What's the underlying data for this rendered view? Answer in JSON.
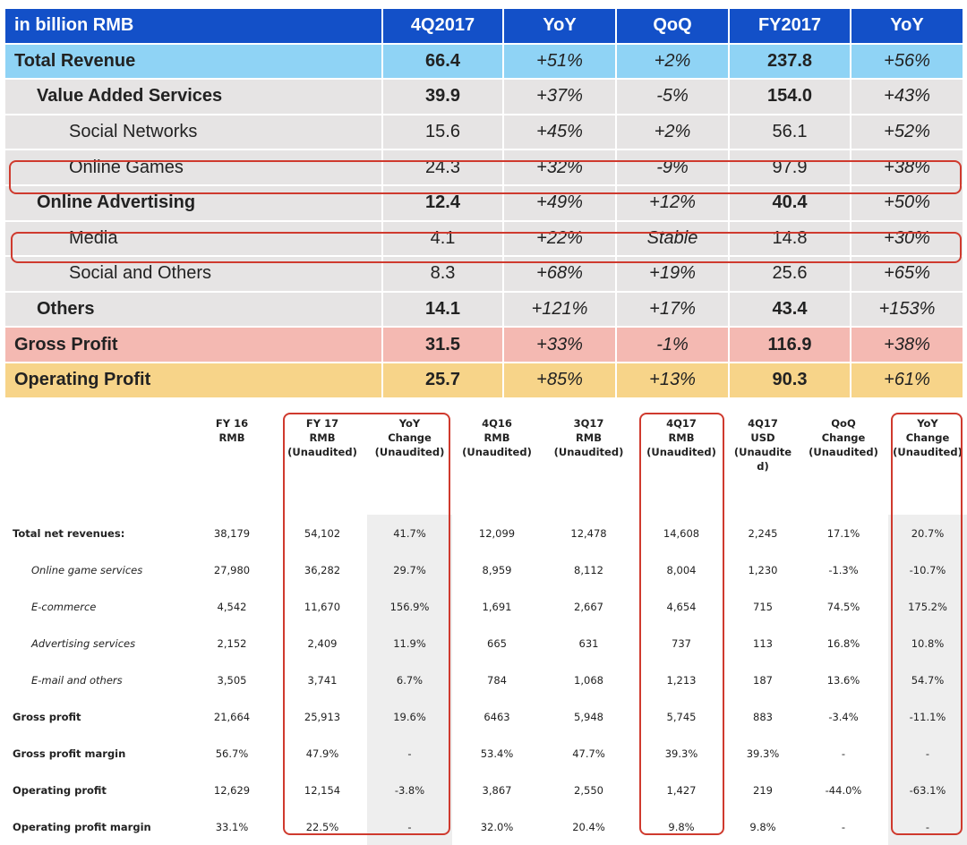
{
  "summary": {
    "columns": [
      "in billion RMB",
      "4Q2017",
      "YoY",
      "QoQ",
      "FY2017",
      "YoY"
    ],
    "rows": [
      {
        "label": "Total Revenue",
        "q": "66.4",
        "yoy": "+51%",
        "qoq": "+2%",
        "fy": "237.8",
        "fyyoy": "+56%"
      },
      {
        "label": "Value Added Services",
        "q": "39.9",
        "yoy": "+37%",
        "qoq": "-5%",
        "fy": "154.0",
        "fyyoy": "+43%"
      },
      {
        "label": "Social Networks",
        "q": "15.6",
        "yoy": "+45%",
        "qoq": "+2%",
        "fy": "56.1",
        "fyyoy": "+52%"
      },
      {
        "label": "Online Games",
        "q": "24.3",
        "yoy": "+32%",
        "qoq": "-9%",
        "fy": "97.9",
        "fyyoy": "+38%"
      },
      {
        "label": "Online Advertising",
        "q": "12.4",
        "yoy": "+49%",
        "qoq": "+12%",
        "fy": "40.4",
        "fyyoy": "+50%"
      },
      {
        "label": "Media",
        "q": "4.1",
        "yoy": "+22%",
        "qoq": "Stable",
        "fy": "14.8",
        "fyyoy": "+30%"
      },
      {
        "label": "Social and Others",
        "q": "8.3",
        "yoy": "+68%",
        "qoq": "+19%",
        "fy": "25.6",
        "fyyoy": "+65%"
      },
      {
        "label": "Others",
        "q": "14.1",
        "yoy": "+121%",
        "qoq": "+17%",
        "fy": "43.4",
        "fyyoy": "+153%"
      },
      {
        "label": "Gross Profit",
        "q": "31.5",
        "yoy": "+33%",
        "qoq": "-1%",
        "fy": "116.9",
        "fyyoy": "+38%"
      },
      {
        "label": "Operating Profit",
        "q": "25.7",
        "yoy": "+85%",
        "qoq": "+13%",
        "fy": "90.3",
        "fyyoy": "+61%"
      }
    ]
  },
  "detail": {
    "headers": [
      "",
      "FY 16\nRMB",
      "FY 17\nRMB\n(Unaudited)",
      "YoY\nChange\n(Unaudited)",
      "4Q16\nRMB\n(Unaudited)",
      "3Q17\nRMB\n(Unaudited)",
      "4Q17\nRMB\n(Unaudited)",
      "4Q17\nUSD\n(Unaudite\nd)",
      "QoQ\nChange\n(Unaudited)",
      "YoY\nChange\n(Unaudited)"
    ],
    "rows": [
      {
        "label": "Total net revenues:",
        "cells": [
          "38,179",
          "54,102",
          "41.7%",
          "12,099",
          "12,478",
          "14,608",
          "2,245",
          "17.1%",
          "20.7%"
        ]
      },
      {
        "label": "Online game services",
        "cells": [
          "27,980",
          "36,282",
          "29.7%",
          "8,959",
          "8,112",
          "8,004",
          "1,230",
          "-1.3%",
          "-10.7%"
        ]
      },
      {
        "label": "E-commerce",
        "cells": [
          "4,542",
          "11,670",
          "156.9%",
          "1,691",
          "2,667",
          "4,654",
          "715",
          "74.5%",
          "175.2%"
        ]
      },
      {
        "label": "Advertising services",
        "cells": [
          "2,152",
          "2,409",
          "11.9%",
          "665",
          "631",
          "737",
          "113",
          "16.8%",
          "10.8%"
        ]
      },
      {
        "label": "E-mail and others",
        "cells": [
          "3,505",
          "3,741",
          "6.7%",
          "784",
          "1,068",
          "1,213",
          "187",
          "13.6%",
          "54.7%"
        ]
      },
      {
        "label": "Gross profit",
        "cells": [
          "21,664",
          "25,913",
          "19.6%",
          "6463",
          "5,948",
          "5,745",
          "883",
          "-3.4%",
          "-11.1%"
        ]
      },
      {
        "label": "Gross profit margin",
        "cells": [
          "56.7%",
          "47.9%",
          "-",
          "53.4%",
          "47.7%",
          "39.3%",
          "39.3%",
          "-",
          "-"
        ]
      },
      {
        "label": "Operating profit",
        "cells": [
          "12,629",
          "12,154",
          "-3.8%",
          "3,867",
          "2,550",
          "1,427",
          "219",
          "-44.0%",
          "-63.1%"
        ]
      },
      {
        "label": "Operating profit margin",
        "cells": [
          "33.1%",
          "22.5%",
          "-",
          "32.0%",
          "20.4%",
          "9.8%",
          "9.8%",
          "-",
          "-"
        ]
      }
    ]
  },
  "colors": {
    "header_blue": "#1350c8",
    "highlight_red": "#cf3a2e"
  }
}
